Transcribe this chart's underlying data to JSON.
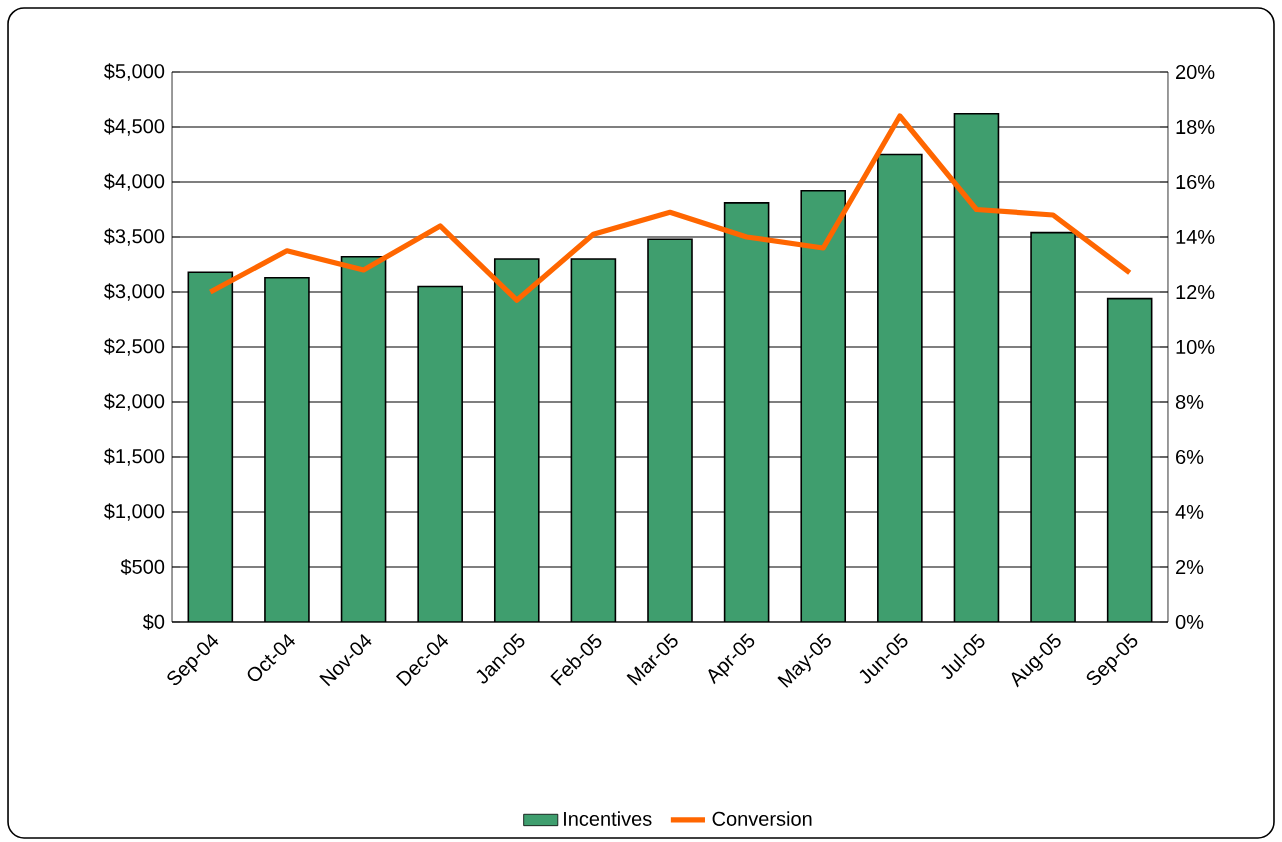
{
  "chart_data": {
    "type": "bar",
    "categories": [
      "Sep-04",
      "Oct-04",
      "Nov-04",
      "Dec-04",
      "Jan-05",
      "Feb-05",
      "Mar-05",
      "Apr-05",
      "May-05",
      "Jun-05",
      "Jul-05",
      "Aug-05",
      "Sep-05"
    ],
    "series": [
      {
        "name": "Incentives",
        "color": "#3f9e6e",
        "values": [
          3180,
          3130,
          3320,
          3050,
          3300,
          3300,
          3480,
          3810,
          3920,
          4250,
          4620,
          3540,
          2940
        ]
      },
      {
        "name": "Conversion",
        "type": "line",
        "axis": "y2",
        "color": "#ff6600",
        "values": [
          12.0,
          13.5,
          12.8,
          14.4,
          11.7,
          14.1,
          14.9,
          14.0,
          13.6,
          18.4,
          15.0,
          14.8,
          12.7
        ]
      }
    ],
    "ylim": [
      0,
      5000
    ],
    "yticks": [
      {
        "value": 0,
        "label": "$0"
      },
      {
        "value": 500,
        "label": "$500"
      },
      {
        "value": 1000,
        "label": "$1,000"
      },
      {
        "value": 1500,
        "label": "$1,500"
      },
      {
        "value": 2000,
        "label": "$2,000"
      },
      {
        "value": 2500,
        "label": "$2,500"
      },
      {
        "value": 3000,
        "label": "$3,000"
      },
      {
        "value": 3500,
        "label": "$3,500"
      },
      {
        "value": 4000,
        "label": "$4,000"
      },
      {
        "value": 4500,
        "label": "$4,500"
      },
      {
        "value": 5000,
        "label": "$5,000"
      }
    ],
    "y2lim": [
      0,
      20
    ],
    "y2ticks": [
      {
        "value": 0,
        "label": "0%"
      },
      {
        "value": 2,
        "label": "2%"
      },
      {
        "value": 4,
        "label": "4%"
      },
      {
        "value": 6,
        "label": "6%"
      },
      {
        "value": 8,
        "label": "8%"
      },
      {
        "value": 10,
        "label": "10%"
      },
      {
        "value": 12,
        "label": "12%"
      },
      {
        "value": 14,
        "label": "14%"
      },
      {
        "value": 16,
        "label": "16%"
      },
      {
        "value": 18,
        "label": "18%"
      },
      {
        "value": 20,
        "label": "20%"
      }
    ],
    "grid": "y",
    "legend": "bottom"
  }
}
